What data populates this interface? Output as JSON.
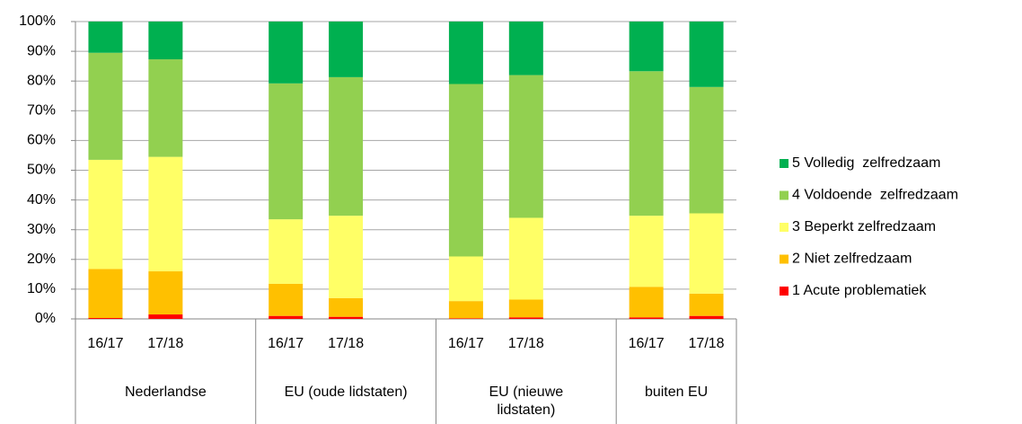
{
  "chart_data": {
    "type": "stacked_bar",
    "categories": [
      "16/17",
      "17/18",
      null,
      "16/17",
      "17/18",
      null,
      "16/17",
      "17/18",
      null,
      "16/17",
      "17/18"
    ],
    "groups": [
      "Nederlandse",
      "EU (oude lidstaten)",
      "EU (nieuwe lidstaten)",
      "buiten EU"
    ],
    "series": [
      {
        "name": "1 Acute problematiek",
        "color": "#ff0000",
        "values": [
          0.3,
          1.5,
          null,
          1,
          0.7,
          null,
          0.2,
          0.5,
          null,
          0.5,
          1
        ]
      },
      {
        "name": "2 Niet zelfredzaam",
        "color": "#ffc000",
        "values": [
          16.5,
          14.5,
          null,
          10.8,
          6.3,
          null,
          5.8,
          6,
          null,
          10.3,
          7.5
        ]
      },
      {
        "name": "3 Beperkt zelfredzaam",
        "color": "#ffff66",
        "values": [
          36.7,
          38.5,
          null,
          21.7,
          27.7,
          null,
          15,
          27.5,
          null,
          23.9,
          27
        ]
      },
      {
        "name": "4 Voldoende  zelfredzaam",
        "color": "#92d050",
        "values": [
          36,
          32.8,
          null,
          45.7,
          46.6,
          null,
          58,
          48,
          null,
          48.6,
          42.5
        ]
      },
      {
        "name": "5 Volledig  zelfredzaam",
        "color": "#00b050",
        "values": [
          10.5,
          12.7,
          null,
          20.8,
          18.7,
          null,
          21,
          18,
          null,
          16.7,
          22
        ]
      }
    ],
    "ylim": [
      0,
      100
    ],
    "yticks": [
      {
        "value": 0,
        "label": "0%"
      },
      {
        "value": 10,
        "label": "10%"
      },
      {
        "value": 20,
        "label": "20%"
      },
      {
        "value": 30,
        "label": "30%"
      },
      {
        "value": 40,
        "label": "40%"
      },
      {
        "value": 50,
        "label": "50%"
      },
      {
        "value": 60,
        "label": "60%"
      },
      {
        "value": 70,
        "label": "70%"
      },
      {
        "value": 80,
        "label": "80%"
      },
      {
        "value": 90,
        "label": "90%"
      },
      {
        "value": 100,
        "label": "100%"
      }
    ],
    "grid": true,
    "legend": "right",
    "legend_order": "reverse"
  }
}
